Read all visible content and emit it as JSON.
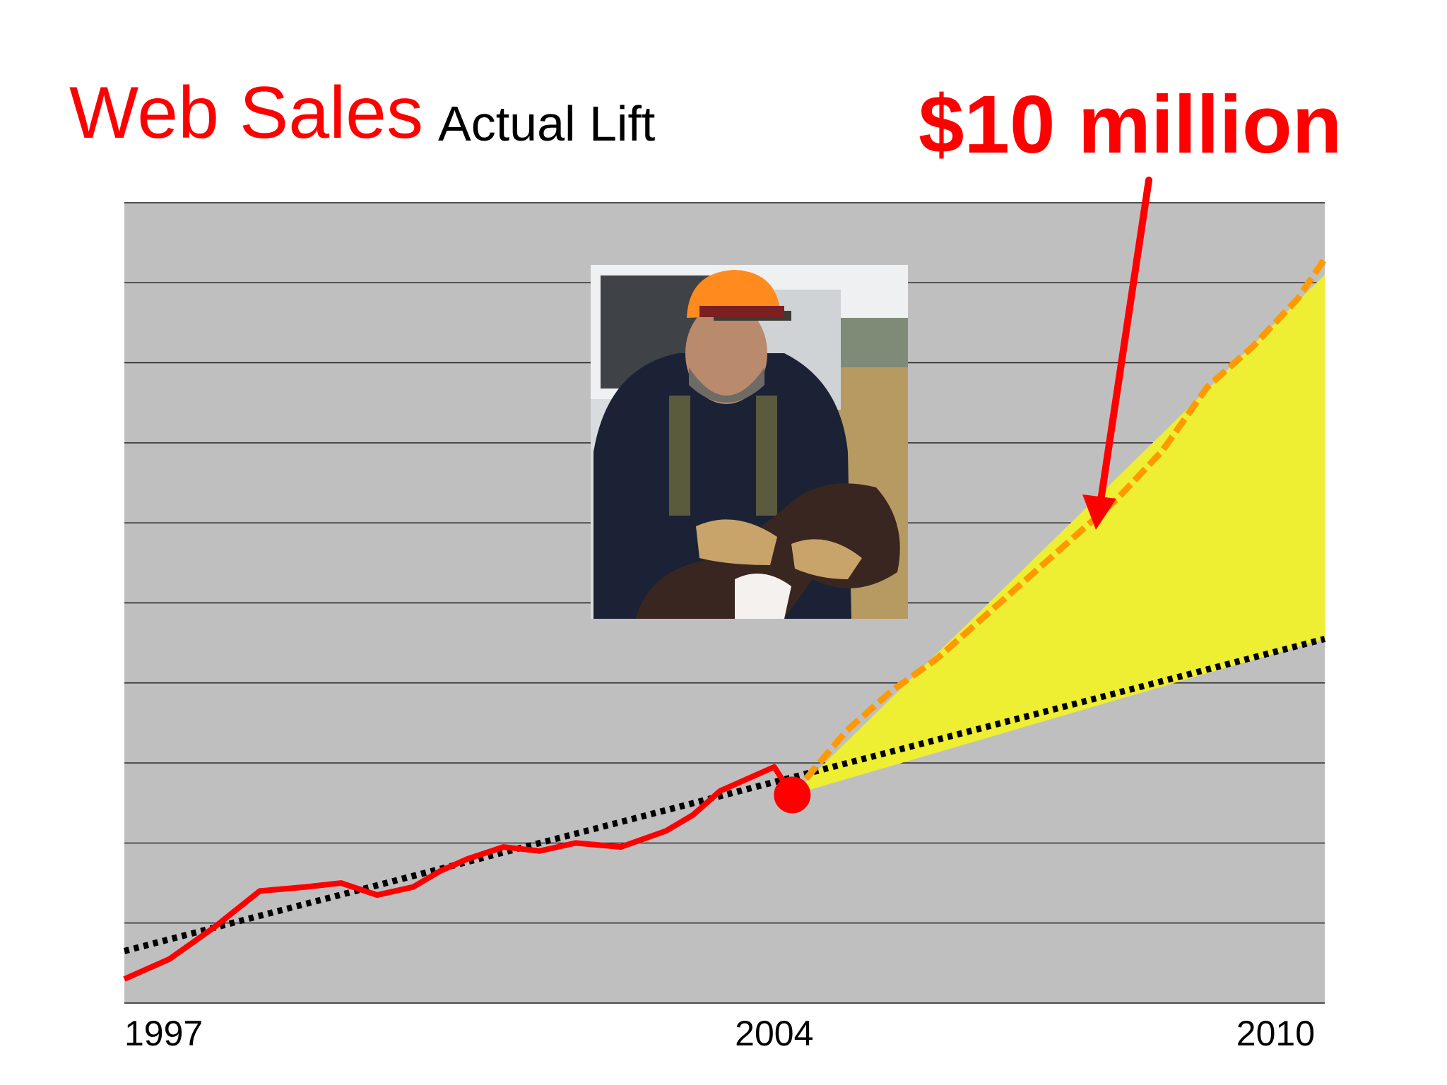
{
  "slide": {
    "title": "Web Sales",
    "subtitle": "Actual Lift",
    "callout": "$10 million"
  },
  "photo": {
    "icon": "hunter-with-dog-photo"
  },
  "colors": {
    "plot_background": "#c0bfc0",
    "gridline": "#1a1a1a",
    "actual_line": "#ff0000",
    "projected_line": "#ff9900",
    "trend_line": "#000000",
    "lift_area": "#eeee33",
    "marker": "#ff0000"
  },
  "chart_data": {
    "type": "line",
    "xticks": [
      "1997",
      "2004",
      "2010"
    ],
    "xlim": [
      1997,
      2010.3
    ],
    "ylim": [
      0,
      10
    ],
    "grid": true,
    "gridlines": 10,
    "series": [
      {
        "style": "actual",
        "x": [
          1997.0,
          1997.5,
          1998.0,
          1998.5,
          1999.0,
          1999.4,
          1999.8,
          2000.2,
          2000.5,
          2000.8,
          2001.2,
          2001.6,
          2002.0,
          2002.5,
          2003.0,
          2003.3,
          2003.6,
          2003.9,
          2004.2,
          2004.4
        ],
        "y": [
          0.3,
          0.55,
          0.95,
          1.4,
          1.45,
          1.5,
          1.35,
          1.45,
          1.65,
          1.8,
          1.95,
          1.9,
          2.0,
          1.95,
          2.15,
          2.35,
          2.65,
          2.8,
          2.95,
          2.6
        ]
      },
      {
        "style": "projected",
        "x": [
          2004.4,
          2005.0,
          2005.5,
          2006.0,
          2006.5,
          2007.0,
          2007.5,
          2008.0,
          2008.5,
          2009.0,
          2009.5,
          2010.0,
          2010.3
        ],
        "y": [
          2.6,
          3.4,
          3.9,
          4.3,
          4.8,
          5.3,
          5.8,
          6.3,
          6.9,
          7.7,
          8.2,
          8.8,
          9.3
        ]
      },
      {
        "style": "trend",
        "x": [
          1997.0,
          2010.3
        ],
        "y": [
          0.65,
          4.55
        ]
      }
    ],
    "lift_area": {
      "upper_x": [
        2004.4,
        2010.3
      ],
      "upper_y": [
        2.6,
        9.1
      ],
      "lower_x": [
        2004.4,
        2010.3
      ],
      "lower_y": [
        2.6,
        4.55
      ]
    },
    "marker": {
      "x": 2004.4,
      "y": 2.6
    }
  }
}
